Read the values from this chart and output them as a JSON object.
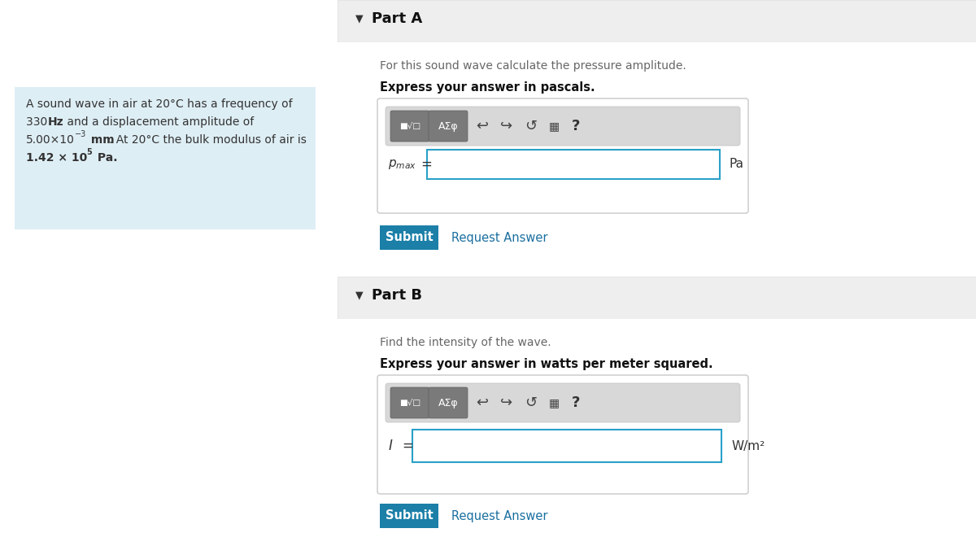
{
  "bg_color": "#ffffff",
  "page_bg": "#f5f5f5",
  "left_panel_bg": "#deeef5",
  "left_panel_border": "#c5dde8",
  "part_header_bg": "#eeeeee",
  "part_header_border": "#dddddd",
  "part_a_label": "Part A",
  "part_b_label": "Part B",
  "part_a_desc": "For this sound wave calculate the pressure amplitude.",
  "part_a_express": "Express your answer in pascals.",
  "part_b_desc": "Find the intensity of the wave.",
  "part_b_express": "Express your answer in watts per meter squared.",
  "part_a_unit": "Pa",
  "part_b_unit": "W/m²",
  "submit_bg": "#1b7fa8",
  "submit_text": "Submit",
  "request_answer_text": "Request Answer",
  "request_answer_color": "#1a6fa0",
  "toolbar_bg": "#d8d8d8",
  "btn_bg": "#7a7a7a",
  "input_border_color": "#2aa0c8",
  "input_bg": "#ffffff",
  "panel_border_color": "#c8c8c8",
  "arrow_color": "#333333",
  "text_color": "#333333",
  "desc_color": "#666666"
}
